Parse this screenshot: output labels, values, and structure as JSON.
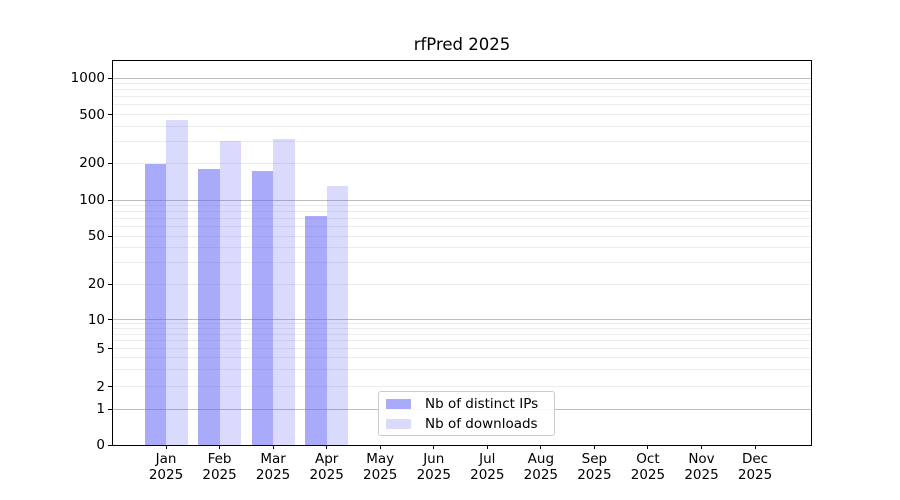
{
  "title": "rfPred 2025",
  "chart_data": {
    "type": "bar",
    "title": "rfPred 2025",
    "categories": [
      {
        "month": "Jan",
        "year": "2025"
      },
      {
        "month": "Feb",
        "year": "2025"
      },
      {
        "month": "Mar",
        "year": "2025"
      },
      {
        "month": "Apr",
        "year": "2025"
      },
      {
        "month": "May",
        "year": "2025"
      },
      {
        "month": "Jun",
        "year": "2025"
      },
      {
        "month": "Jul",
        "year": "2025"
      },
      {
        "month": "Aug",
        "year": "2025"
      },
      {
        "month": "Sep",
        "year": "2025"
      },
      {
        "month": "Oct",
        "year": "2025"
      },
      {
        "month": "Nov",
        "year": "2025"
      },
      {
        "month": "Dec",
        "year": "2025"
      }
    ],
    "series": [
      {
        "name": "Nb of distinct IPs",
        "color": "rgba(100,100,245,0.55)",
        "values": [
          197,
          178,
          173,
          73,
          null,
          null,
          null,
          null,
          null,
          null,
          null,
          null
        ]
      },
      {
        "name": "Nb of downloads",
        "color": "rgba(100,100,245,0.24)",
        "values": [
          450,
          305,
          312,
          130,
          null,
          null,
          null,
          null,
          null,
          null,
          null,
          null
        ]
      }
    ],
    "yscale": "symlog",
    "yticks": [
      0,
      1,
      2,
      5,
      10,
      20,
      50,
      100,
      200,
      500,
      1000
    ],
    "ylim": [
      0,
      1380
    ],
    "xlabel": "",
    "ylabel": "",
    "grid": "both",
    "legend_position": "lower-center-inside"
  },
  "colors": {
    "major_grid": "#bdbdbd",
    "minor_grid": "#ececec",
    "axis": "#000000",
    "background": "#ffffff"
  }
}
